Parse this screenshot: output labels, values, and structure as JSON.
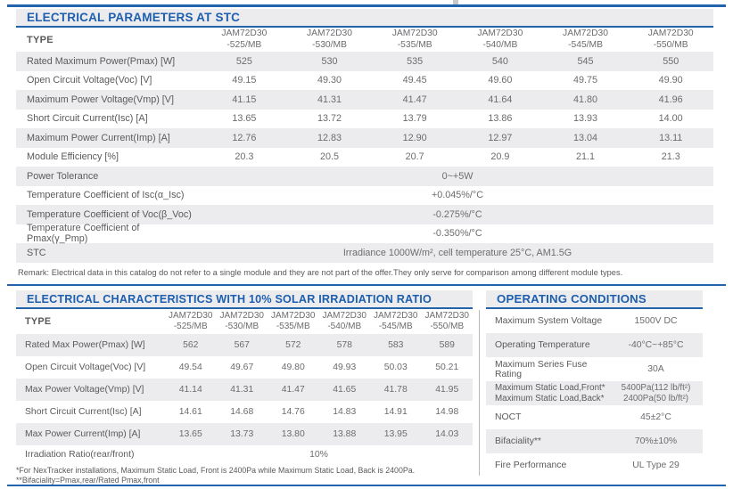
{
  "theme": {
    "accent": "#1d5fae",
    "rule": "#2263ae",
    "stripe": "#ececee",
    "label": "#595a5c",
    "value": "#6b6c6f",
    "divider": "#b7b9bc"
  },
  "stc": {
    "title": "ELECTRICAL PARAMETERS AT STC",
    "type_label": "TYPE",
    "columns": [
      {
        "l1": "JAM72D30",
        "l2": "-525/MB"
      },
      {
        "l1": "JAM72D30",
        "l2": "-530/MB"
      },
      {
        "l1": "JAM72D30",
        "l2": "-535/MB"
      },
      {
        "l1": "JAM72D30",
        "l2": "-540/MB"
      },
      {
        "l1": "JAM72D30",
        "l2": "-545/MB"
      },
      {
        "l1": "JAM72D30",
        "l2": "-550/MB"
      }
    ],
    "rows": [
      {
        "label": "Rated Maximum Power(Pmax) [W]",
        "values": [
          "525",
          "530",
          "535",
          "540",
          "545",
          "550"
        ]
      },
      {
        "label": "Open Circuit Voltage(Voc) [V]",
        "values": [
          "49.15",
          "49.30",
          "49.45",
          "49.60",
          "49.75",
          "49.90"
        ]
      },
      {
        "label": "Maximum Power Voltage(Vmp) [V]",
        "values": [
          "41.15",
          "41.31",
          "41.47",
          "41.64",
          "41.80",
          "41.96"
        ]
      },
      {
        "label": "Short Circuit Current(Isc) [A]",
        "values": [
          "13.65",
          "13.72",
          "13.79",
          "13.86",
          "13.93",
          "14.00"
        ]
      },
      {
        "label": "Maximum Power Current(Imp) [A]",
        "values": [
          "12.76",
          "12.83",
          "12.90",
          "12.97",
          "13.04",
          "13.11"
        ]
      },
      {
        "label": "Module Efficiency [%]",
        "values": [
          "20.3",
          "20.5",
          "20.7",
          "20.9",
          "21.1",
          "21.3"
        ]
      }
    ],
    "span_rows": [
      {
        "label": "Power Tolerance",
        "value": "0~+5W"
      },
      {
        "label": "Temperature Coefficient of Isc(α_Isc)",
        "value": "+0.045%/°C"
      },
      {
        "label": "Temperature Coefficient of Voc(β_Voc)",
        "value": "-0.275%/°C"
      },
      {
        "label": "Temperature Coefficient of Pmax(γ_Pmp)",
        "value": "-0.350%/°C"
      },
      {
        "label": "STC",
        "value": "Irradiance 1000W/m²,  cell temperature 25°C, AM1.5G"
      }
    ],
    "remark": "Remark: Electrical data in this catalog do not refer to a single module and they are not part of the offer.They only serve for comparison among different module types."
  },
  "irr": {
    "title": "ELECTRICAL CHARACTERISTICS WITH 10% SOLAR IRRADIATION RATIO",
    "type_label": "TYPE",
    "columns": [
      {
        "l1": "JAM72D30",
        "l2": "-525/MB"
      },
      {
        "l1": "JAM72D30",
        "l2": "-530/MB"
      },
      {
        "l1": "JAM72D30",
        "l2": "-535/MB"
      },
      {
        "l1": "JAM72D30",
        "l2": "-540/MB"
      },
      {
        "l1": "JAM72D30",
        "l2": "-545/MB"
      },
      {
        "l1": "JAM72D30",
        "l2": "-550/MB"
      }
    ],
    "rows": [
      {
        "label": "Rated Max Power(Pmax) [W]",
        "values": [
          "562",
          "567",
          "572",
          "578",
          "583",
          "589"
        ]
      },
      {
        "label": "Open Circuit Voltage(Voc) [V]",
        "values": [
          "49.54",
          "49.67",
          "49.80",
          "49.93",
          "50.03",
          "50.21"
        ]
      },
      {
        "label": "Max Power Voltage(Vmp) [V]",
        "values": [
          "41.14",
          "41.31",
          "41.47",
          "41.65",
          "41.78",
          "41.95"
        ]
      },
      {
        "label": "Short Circuit Current(Isc) [A]",
        "values": [
          "14.61",
          "14.68",
          "14.76",
          "14.83",
          "14.91",
          "14.98"
        ]
      },
      {
        "label": "Max Power Current(Imp) [A]",
        "values": [
          "13.65",
          "13.73",
          "13.80",
          "13.88",
          "13.95",
          "14.03"
        ]
      }
    ],
    "span_row": {
      "label": "Irradiation Ratio(rear/front)",
      "value": "10%"
    },
    "footnote1": "*For NexTracker installations, Maximum Static Load, Front is 2400Pa while Maximum Static Load, Back is 2400Pa.",
    "footnote2": "**Bifaciality=Pmax,rear/Rated Pmax,front"
  },
  "oc": {
    "title": "OPERATING CONDITIONS",
    "rows": [
      {
        "label": "Maximum System Voltage",
        "value": "1500V DC"
      },
      {
        "label": "Operating Temperature",
        "value": "-40°C~+85°C"
      },
      {
        "label": "Maximum Series Fuse Rating",
        "value": "30A"
      },
      {
        "label_line1": "Maximum Static Load,Front*",
        "label_line2": "Maximum Static Load,Back*",
        "value_line1": "5400Pa(112 lb/ft²)",
        "value_line2": "2400Pa(50 lb/ft²)"
      },
      {
        "label": "NOCT",
        "value": "45±2°C"
      },
      {
        "label": "Bifaciality**",
        "value": "70%±10%"
      },
      {
        "label": "Fire Performance",
        "value": "UL Type 29"
      }
    ]
  }
}
